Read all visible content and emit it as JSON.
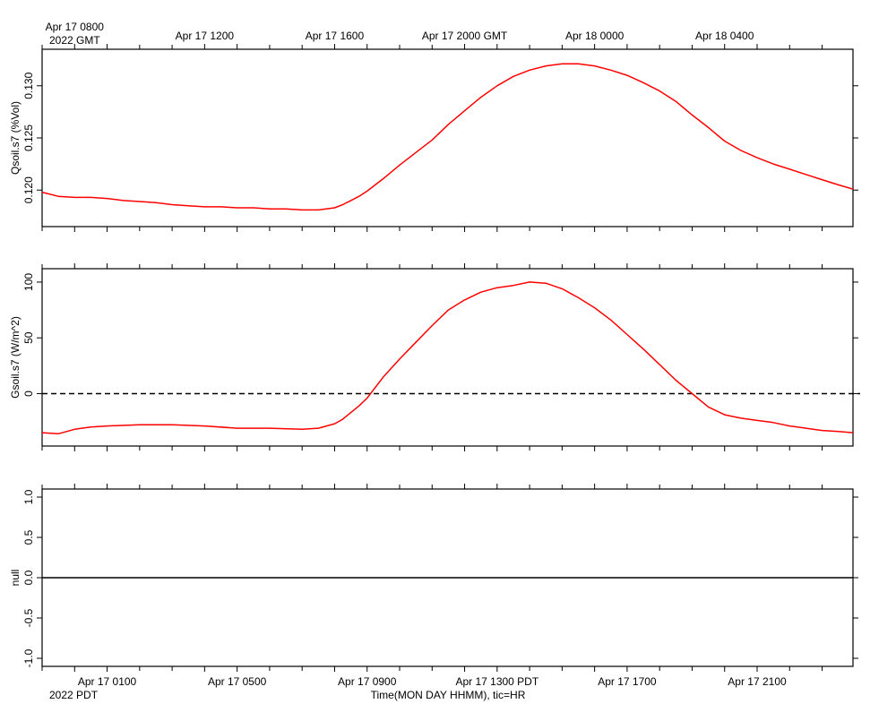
{
  "chart_data": [
    {
      "type": "line",
      "ylabel": "Qsoil.s7 (%Vol)",
      "ylim": [
        0.1165,
        0.1335
      ],
      "yticks": [
        0.12,
        0.125,
        0.13
      ],
      "ytick_labels": [
        "0.120",
        "0.125",
        "0.130"
      ],
      "grid": false,
      "series": [
        {
          "color": "#ff0000",
          "x": [
            -1.0,
            -0.5,
            0,
            0.5,
            1.0,
            1.5,
            2.0,
            2.5,
            3.0,
            3.5,
            4.0,
            4.5,
            5.0,
            5.5,
            6.0,
            6.5,
            7.0,
            7.5,
            8.0,
            8.25,
            8.5,
            8.75,
            9.0,
            9.5,
            10.0,
            10.5,
            11.0,
            11.5,
            12.0,
            12.5,
            13.0,
            13.5,
            14.0,
            14.5,
            15.0,
            15.5,
            16.0,
            16.5,
            17.0,
            17.5,
            18.0,
            18.5,
            19.0,
            19.5,
            20.0,
            20.5,
            21.0,
            21.5,
            22.0,
            22.5,
            23.0,
            23.5,
            23.95
          ],
          "y": [
            0.1198,
            0.1194,
            0.1193,
            0.1193,
            0.1192,
            0.119,
            0.1189,
            0.1188,
            0.1186,
            0.1185,
            0.1184,
            0.1184,
            0.1183,
            0.1183,
            0.1182,
            0.1182,
            0.1181,
            0.1181,
            0.1183,
            0.1186,
            0.119,
            0.1194,
            0.1199,
            0.1211,
            0.1224,
            0.1236,
            0.1248,
            0.1263,
            0.1276,
            0.1289,
            0.13,
            0.1309,
            0.1315,
            0.1319,
            0.1321,
            0.1321,
            0.1319,
            0.1315,
            0.131,
            0.1303,
            0.1295,
            0.1285,
            0.1272,
            0.126,
            0.1247,
            0.1238,
            0.1231,
            0.1225,
            0.122,
            0.1215,
            0.121,
            0.1205,
            0.1201
          ]
        }
      ]
    },
    {
      "type": "line",
      "ylabel": "Gsoil.s7 (W/m^2)",
      "ylim": [
        -47,
        112
      ],
      "yticks": [
        0,
        50,
        100
      ],
      "ytick_labels": [
        "0",
        "50",
        "100"
      ],
      "grid": false,
      "reference_line": {
        "y": 0,
        "style": "dashed",
        "color": "#000000"
      },
      "series": [
        {
          "color": "#ff0000",
          "x": [
            -1.0,
            -0.5,
            0,
            0.5,
            1.0,
            2.0,
            3.0,
            4.0,
            5.0,
            6.0,
            7.0,
            7.5,
            8.0,
            8.25,
            8.5,
            8.75,
            9.0,
            9.5,
            10.0,
            10.5,
            11.0,
            11.5,
            12.0,
            12.5,
            13.0,
            13.5,
            14.0,
            14.5,
            15.0,
            15.5,
            16.0,
            16.5,
            17.0,
            17.5,
            18.0,
            18.5,
            19.0,
            19.5,
            20.0,
            20.5,
            21.0,
            21.5,
            22.0,
            22.5,
            23.0,
            23.5,
            23.95
          ],
          "y": [
            -35,
            -36,
            -32,
            -30,
            -29,
            -28,
            -28,
            -29,
            -31,
            -31,
            -32,
            -31,
            -27,
            -23,
            -17,
            -11,
            -4,
            15,
            31,
            46,
            61,
            75,
            84,
            91,
            95,
            97,
            100,
            99,
            94,
            86,
            77,
            66,
            53,
            40,
            26,
            12,
            0,
            -12,
            -19,
            -22,
            -24,
            -26,
            -29,
            -31,
            -33,
            -34,
            -35
          ]
        }
      ]
    },
    {
      "type": "line",
      "ylabel": "null",
      "ylim": [
        -1.1,
        1.1
      ],
      "yticks": [
        -1.0,
        -0.5,
        0.0,
        0.5,
        1.0
      ],
      "ytick_labels": [
        "-1.0",
        "-0.5",
        "0.0",
        "0.5",
        "1.0"
      ],
      "grid": false,
      "series": [
        {
          "color": "#000000",
          "x": [
            -1.0,
            23.95
          ],
          "y": [
            0,
            0
          ]
        }
      ]
    }
  ],
  "time_axis": {
    "x_unit": "hours since Apr 17 0000 PDT",
    "xlim": [
      -1.0,
      23.95
    ],
    "xlabel": "Time(MON DAY HHMM), tic=HR",
    "top_labels": [
      {
        "x": 0,
        "text": "Apr 17 0800"
      },
      {
        "x": 4,
        "text": "Apr 17 1200"
      },
      {
        "x": 8,
        "text": "Apr 17 1600"
      },
      {
        "x": 12,
        "text": "Apr 17 2000 GMT"
      },
      {
        "x": 16,
        "text": "Apr 18 0000"
      },
      {
        "x": 20,
        "text": "Apr 18 0400"
      }
    ],
    "top_year": "2022 GMT",
    "bottom_labels": [
      {
        "x": 1,
        "text": "Apr 17 0100"
      },
      {
        "x": 5,
        "text": "Apr 17 0500"
      },
      {
        "x": 9,
        "text": "Apr 17 0900"
      },
      {
        "x": 13,
        "text": "Apr 17 1300 PDT"
      },
      {
        "x": 17,
        "text": "Apr 17 1700"
      },
      {
        "x": 21,
        "text": "Apr 17 2100"
      }
    ],
    "bottom_year": "2022 PDT"
  }
}
